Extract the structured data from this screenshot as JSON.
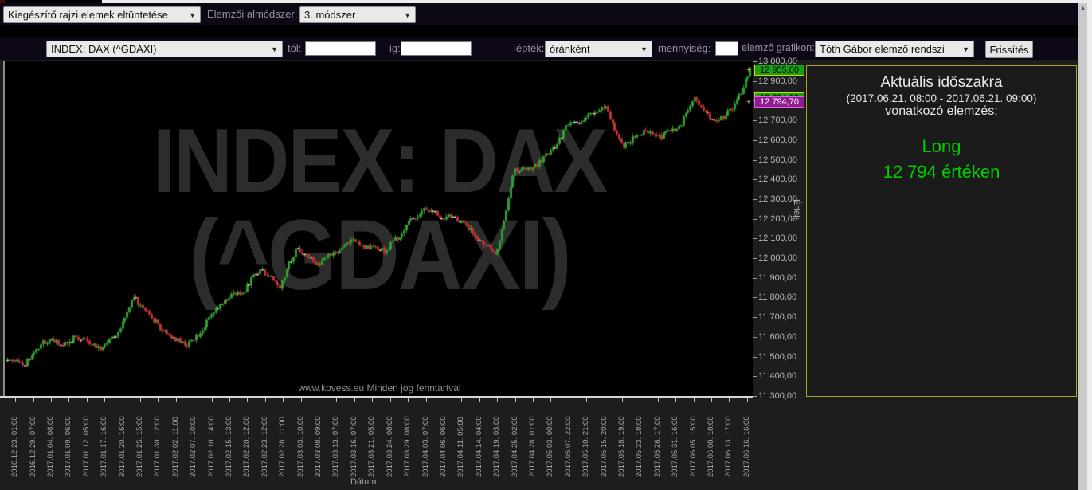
{
  "icons": {
    "caret": "▼",
    "scroll_up": "▲"
  },
  "toolbar1": {
    "draw_elements_select": "Kiegészítő rajzi elemek eltüntetése",
    "submethod_label": "Elemzői almódszer:",
    "submethod_select": "3. módszer"
  },
  "toolbar2": {
    "instrument_select": "INDEX: DAX (^GDAXI)",
    "from_label": "tól:",
    "from_value": "",
    "to_label": "ig:",
    "to_value": "",
    "scale_label": "lépték:",
    "scale_select": "óránként",
    "quantity_label": "mennyiség:",
    "quantity_value": "",
    "analyzer_label": "elemző grafikon:",
    "analyzer_select": "Tóth Gábor elemző rendszi",
    "refresh_button": "Frissítés"
  },
  "panel": {
    "title": "Aktuális időszakra",
    "period": "(2017.06.21. 08:00 - 2017.06.21. 09:00)",
    "subtitle": "vonatkozó elemzés:",
    "signal": "Long",
    "value_line": "12 794  értéken",
    "signal_color": "#00ce00"
  },
  "chart_data": {
    "type": "candlestick",
    "title_watermark_line1": "INDEX: DAX",
    "title_watermark_line2": "(^GDAXI)",
    "copyright": "www.kovess.eu Minden jog fenntartval",
    "xlabel": "Dátum",
    "ylabel": "Érték",
    "ylim": [
      11300,
      13000
    ],
    "y_tick_step": 100,
    "grid": false,
    "x_tick_labels": [
      "2016.12.23. 01:00",
      "2016.12.29. 07:00",
      "2017.01.04. 08:00",
      "2017.01.09. 06:00",
      "2017.01.12. 05:00",
      "2017.01.17. 16:00",
      "2017.01.20. 16:00",
      "2017.01.25. 15:00",
      "2017.01.30. 12:00",
      "2017.02.02. 11:00",
      "2017.02.07. 10:00",
      "2017.02.10. 14:00",
      "2017.02.15. 13:00",
      "2017.02.20. 12:00",
      "2017.02.23. 12:00",
      "2017.02.28. 11:00",
      "2017.03.03. 10:00",
      "2017.03.08. 09:00",
      "2017.03.13. 07:00",
      "2017.03.16. 07:00",
      "2017.03.21. 05:00",
      "2017.03.24. 08:00",
      "2017.03.29. 08:00",
      "2017.04.03. 07:00",
      "2017.04.06. 06:00",
      "2017.04.11. 05:00",
      "2017.04.14. 04:00",
      "2017.04.19. 03:00",
      "2017.04.25. 02:00",
      "2017.04.28. 01:00",
      "2017.05.03. 00:00",
      "2017.05.07. 22:00",
      "2017.05.10. 21:00",
      "2017.05.15. 20:00",
      "2017.05.18. 19:00",
      "2017.05.23. 18:00",
      "2017.05.26. 17:00",
      "2017.05.31. 16:00",
      "2017.06.05. 15:00",
      "2017.06.08. 18:00",
      "2017.06.13. 17:00",
      "2017.06.16. 16:00"
    ],
    "approx_close_at_ticks": [
      11480,
      11470,
      11580,
      11560,
      11600,
      11540,
      11610,
      11800,
      11690,
      11600,
      11560,
      11670,
      11790,
      11830,
      11950,
      11850,
      12060,
      11970,
      12030,
      12080,
      12050,
      12040,
      12170,
      12250,
      12210,
      12200,
      12090,
      12020,
      12450,
      12460,
      12540,
      12680,
      12710,
      12780,
      12560,
      12640,
      12620,
      12650,
      12820,
      12690,
      12750,
      12950
    ],
    "price_markers": [
      {
        "label": "12 955,00",
        "price": 12955.0,
        "style": "green"
      },
      {
        "label": "12 814,20",
        "price": 12814.2,
        "style": "green",
        "partially_visible": true
      },
      {
        "label": "12 794,70",
        "price": 12794.7,
        "style": "purple"
      }
    ],
    "colors": {
      "up": "#2f9e2f",
      "down": "#c23232",
      "neutral": "#dcdcdc",
      "background": "#000000"
    }
  }
}
